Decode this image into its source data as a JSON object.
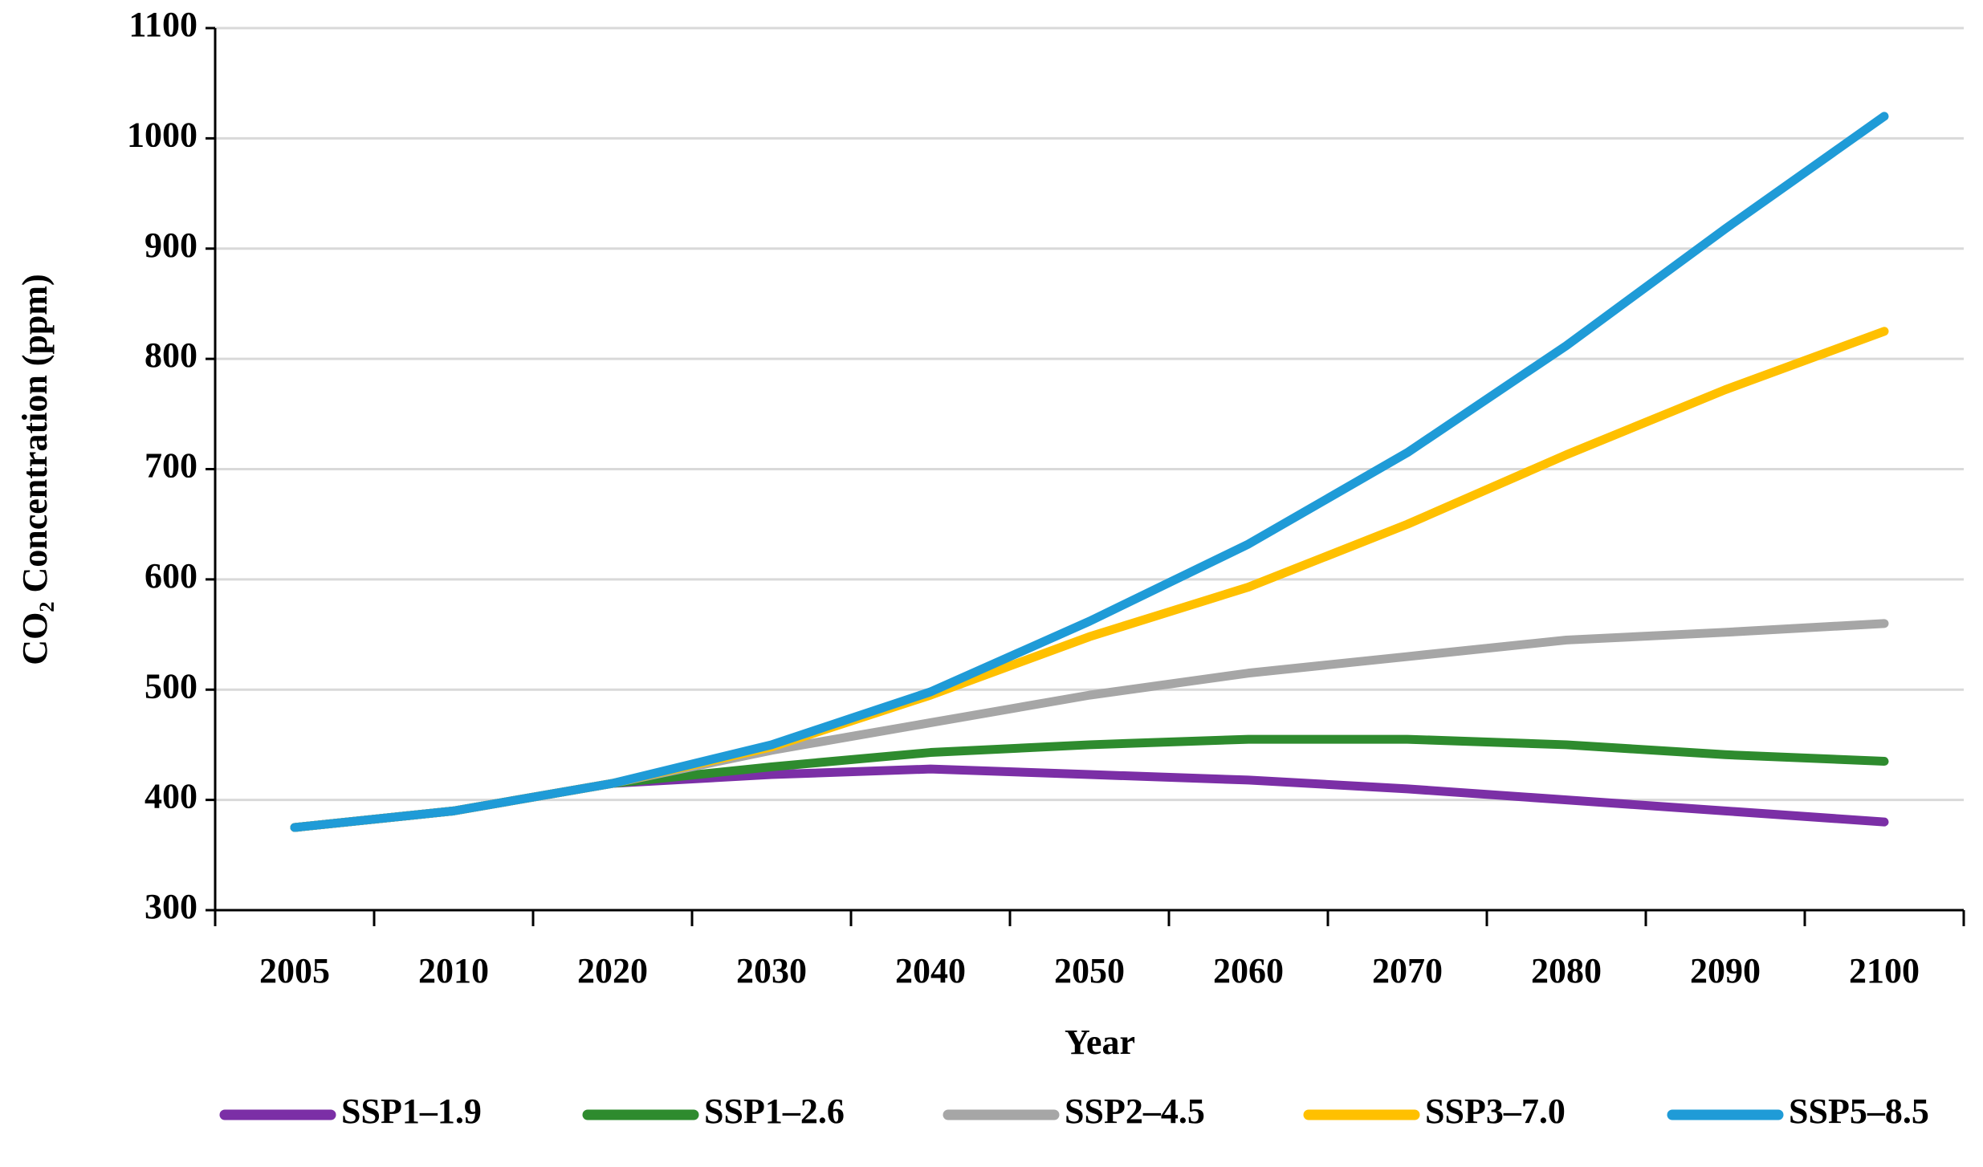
{
  "chart_data": {
    "type": "line",
    "x_label": "Year",
    "y_label": "CO₂ Concentration (ppm)",
    "categories": [
      "2005",
      "2010",
      "2020",
      "2030",
      "2040",
      "2050",
      "2060",
      "2070",
      "2080",
      "2090",
      "2100"
    ],
    "series": [
      {
        "name": "SSP1–1.9",
        "color": "#7b2fa6",
        "values": [
          375,
          390,
          415,
          423,
          428,
          423,
          418,
          410,
          400,
          390,
          380
        ]
      },
      {
        "name": "SSP1–2.6",
        "color": "#2e8b2e",
        "values": [
          375,
          390,
          415,
          430,
          443,
          450,
          455,
          455,
          450,
          441,
          435
        ]
      },
      {
        "name": "SSP2–4.5",
        "color": "#a6a6a6",
        "values": [
          375,
          390,
          415,
          445,
          470,
          495,
          515,
          530,
          545,
          552,
          560
        ]
      },
      {
        "name": "SSP3–7.0",
        "color": "#ffc000",
        "values": [
          375,
          390,
          415,
          448,
          495,
          548,
          593,
          650,
          713,
          772,
          825
        ]
      },
      {
        "name": "SSP5–8.5",
        "color": "#1f9bd7",
        "values": [
          375,
          390,
          415,
          450,
          498,
          562,
          632,
          715,
          812,
          918,
          1020
        ]
      }
    ],
    "ylim": [
      300,
      1100
    ],
    "yticks": [
      300,
      400,
      500,
      600,
      700,
      800,
      900,
      1000,
      1100
    ],
    "grid": true,
    "legend": "bottom"
  }
}
